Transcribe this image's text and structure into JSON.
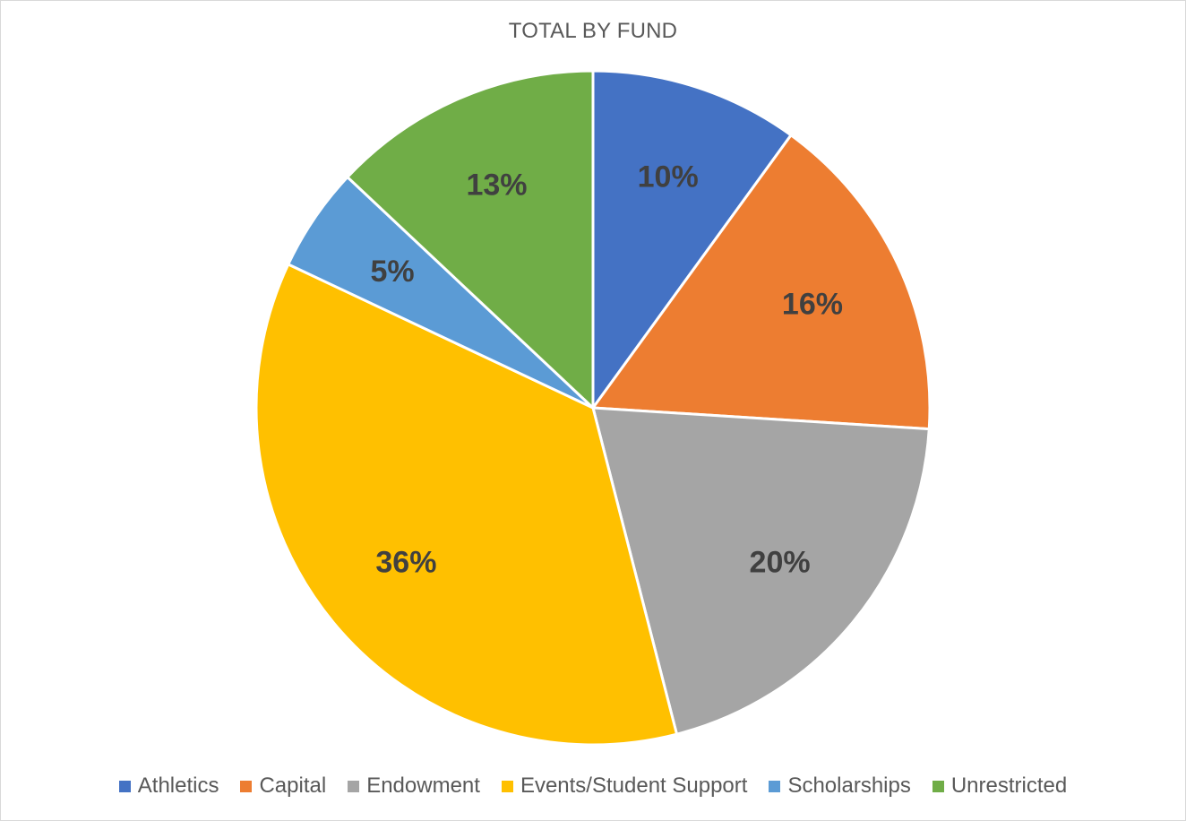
{
  "chart_data": {
    "type": "pie",
    "title": "TOTAL BY FUND",
    "categories": [
      "Athletics",
      "Capital",
      "Endowment",
      "Events/Student Support",
      "Scholarships",
      "Unrestricted"
    ],
    "values": [
      10,
      16,
      20,
      36,
      5,
      13
    ],
    "labels": [
      "10%",
      "16%",
      "20%",
      "36%",
      "5%",
      "13%"
    ],
    "colors": [
      "#4472c4",
      "#ed7d31",
      "#a5a5a5",
      "#ffc000",
      "#5b9bd5",
      "#70ad47"
    ],
    "legend_position": "bottom",
    "start_angle": "12 o'clock",
    "direction": "clockwise"
  }
}
